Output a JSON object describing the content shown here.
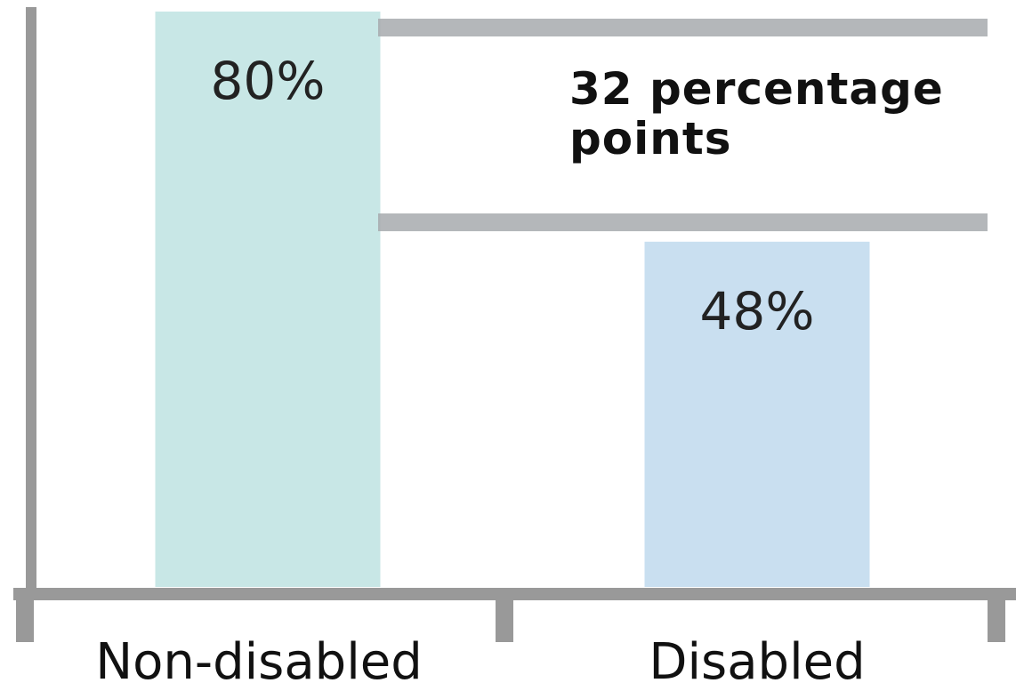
{
  "chart_data": {
    "type": "bar",
    "categories": [
      "Non-disabled",
      "Disabled"
    ],
    "values": [
      80,
      48
    ],
    "value_labels": [
      "80%",
      "48%"
    ],
    "colors": [
      "#c8e7e6",
      "#c9dff0"
    ],
    "ylim": [
      0,
      80
    ],
    "annotation": "32 percentage points"
  }
}
